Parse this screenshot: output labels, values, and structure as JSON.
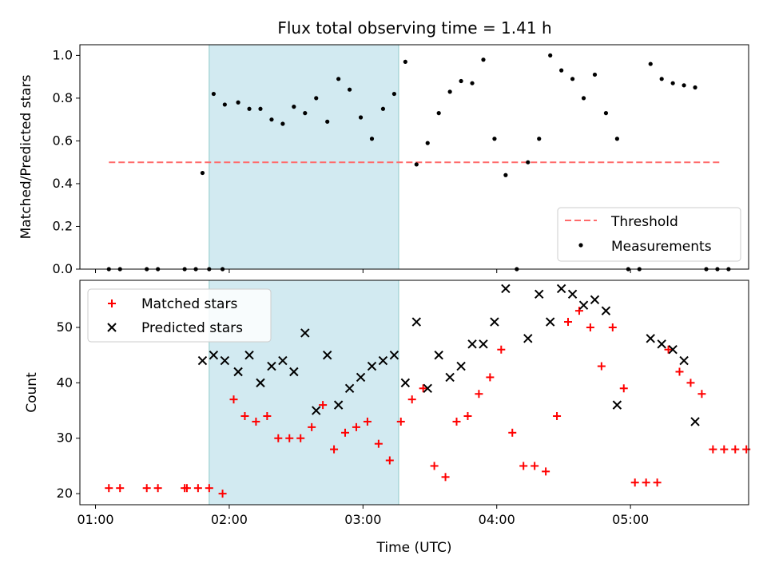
{
  "title": "Flux total observing time = 1.41 h",
  "colors": {
    "shade": "#add8e6",
    "threshold": "#ff6b6b",
    "measurement": "#000000",
    "matched": "#ff0000",
    "predicted": "#000000"
  },
  "chart_data": [
    {
      "type": "scatter",
      "ylabel": "Matched/Predicted stars",
      "xlim": [
        "00:53",
        "05:53"
      ],
      "ylim": [
        0,
        1.05
      ],
      "yticks": [
        "0.0",
        "0.2",
        "0.4",
        "0.6",
        "0.8",
        "1.0"
      ],
      "legend_position": "bottom-right",
      "shaded_span": [
        "01:51",
        "03:16"
      ],
      "threshold": {
        "name": "Threshold",
        "value": 0.5,
        "x_range": [
          "01:06",
          "05:41"
        ],
        "style": "dashed"
      },
      "series": [
        {
          "name": "Measurements",
          "points": [
            [
              "01:06",
              0.0
            ],
            [
              "01:11",
              0.0
            ],
            [
              "01:23",
              0.0
            ],
            [
              "01:28",
              0.0
            ],
            [
              "01:40",
              0.0
            ],
            [
              "01:45",
              0.0
            ],
            [
              "01:51",
              0.0
            ],
            [
              "01:57",
              0.0
            ],
            [
              "01:48",
              0.45
            ],
            [
              "01:53",
              0.82
            ],
            [
              "01:58",
              0.77
            ],
            [
              "02:04",
              0.78
            ],
            [
              "02:09",
              0.75
            ],
            [
              "02:14",
              0.75
            ],
            [
              "02:19",
              0.7
            ],
            [
              "02:24",
              0.68
            ],
            [
              "02:29",
              0.76
            ],
            [
              "02:34",
              0.73
            ],
            [
              "02:39",
              0.8
            ],
            [
              "02:44",
              0.69
            ],
            [
              "02:49",
              0.89
            ],
            [
              "02:54",
              0.84
            ],
            [
              "02:59",
              0.71
            ],
            [
              "03:04",
              0.61
            ],
            [
              "03:09",
              0.75
            ],
            [
              "03:14",
              0.82
            ],
            [
              "03:19",
              0.97
            ],
            [
              "03:24",
              0.49
            ],
            [
              "03:29",
              0.59
            ],
            [
              "03:34",
              0.73
            ],
            [
              "03:39",
              0.83
            ],
            [
              "03:44",
              0.88
            ],
            [
              "03:49",
              0.87
            ],
            [
              "03:54",
              0.98
            ],
            [
              "03:59",
              0.61
            ],
            [
              "04:04",
              0.44
            ],
            [
              "04:09",
              0.0
            ],
            [
              "04:14",
              0.5
            ],
            [
              "04:19",
              0.61
            ],
            [
              "04:24",
              1.0
            ],
            [
              "04:29",
              0.93
            ],
            [
              "04:34",
              0.89
            ],
            [
              "04:39",
              0.8
            ],
            [
              "04:44",
              0.91
            ],
            [
              "04:49",
              0.73
            ],
            [
              "04:54",
              0.61
            ],
            [
              "04:59",
              0.0
            ],
            [
              "05:04",
              0.0
            ],
            [
              "05:09",
              0.96
            ],
            [
              "05:14",
              0.89
            ],
            [
              "05:19",
              0.87
            ],
            [
              "05:24",
              0.86
            ],
            [
              "05:29",
              0.85
            ],
            [
              "05:34",
              0.0
            ],
            [
              "05:39",
              0.0
            ],
            [
              "05:44",
              0.0
            ]
          ]
        }
      ]
    },
    {
      "type": "scatter",
      "ylabel": "Count",
      "xlabel": "Time (UTC)",
      "xlim": [
        "00:53",
        "05:53"
      ],
      "ylim": [
        18,
        58.5
      ],
      "yticks": [
        "20",
        "30",
        "40",
        "50"
      ],
      "xticks": [
        "01:00",
        "02:00",
        "03:00",
        "04:00",
        "05:00"
      ],
      "legend_position": "top-left",
      "shaded_span": [
        "01:51",
        "03:16"
      ],
      "series": [
        {
          "name": "Matched stars",
          "marker": "plus",
          "points": [
            [
              "01:06",
              21
            ],
            [
              "01:11",
              21
            ],
            [
              "01:23",
              21
            ],
            [
              "01:28",
              21
            ],
            [
              "01:40",
              21
            ],
            [
              "01:41",
              21
            ],
            [
              "01:46",
              21
            ],
            [
              "01:51",
              21
            ],
            [
              "01:57",
              20
            ],
            [
              "02:02",
              37
            ],
            [
              "02:07",
              34
            ],
            [
              "02:12",
              33
            ],
            [
              "02:17",
              34
            ],
            [
              "02:22",
              30
            ],
            [
              "02:27",
              30
            ],
            [
              "02:32",
              30
            ],
            [
              "02:37",
              32
            ],
            [
              "02:42",
              36
            ],
            [
              "02:47",
              28
            ],
            [
              "02:52",
              31
            ],
            [
              "02:57",
              32
            ],
            [
              "03:02",
              33
            ],
            [
              "03:07",
              29
            ],
            [
              "03:12",
              26
            ],
            [
              "03:17",
              33
            ],
            [
              "03:22",
              37
            ],
            [
              "03:27",
              39
            ],
            [
              "03:32",
              25
            ],
            [
              "03:37",
              23
            ],
            [
              "03:42",
              33
            ],
            [
              "03:47",
              34
            ],
            [
              "03:52",
              38
            ],
            [
              "03:57",
              41
            ],
            [
              "04:02",
              46
            ],
            [
              "04:07",
              31
            ],
            [
              "04:12",
              25
            ],
            [
              "04:17",
              25
            ],
            [
              "04:22",
              24
            ],
            [
              "04:27",
              34
            ],
            [
              "04:32",
              51
            ],
            [
              "04:37",
              53
            ],
            [
              "04:42",
              50
            ],
            [
              "04:47",
              43
            ],
            [
              "04:52",
              50
            ],
            [
              "04:57",
              39
            ],
            [
              "05:02",
              22
            ],
            [
              "05:07",
              22
            ],
            [
              "05:12",
              22
            ],
            [
              "05:17",
              46
            ],
            [
              "05:22",
              42
            ],
            [
              "05:27",
              40
            ],
            [
              "05:32",
              38
            ],
            [
              "05:37",
              28
            ],
            [
              "05:42",
              28
            ],
            [
              "05:47",
              28
            ],
            [
              "05:52",
              28
            ]
          ]
        },
        {
          "name": "Predicted stars",
          "marker": "x",
          "points": [
            [
              "01:48",
              44
            ],
            [
              "01:53",
              45
            ],
            [
              "01:58",
              44
            ],
            [
              "02:04",
              42
            ],
            [
              "02:09",
              45
            ],
            [
              "02:14",
              40
            ],
            [
              "02:19",
              43
            ],
            [
              "02:24",
              44
            ],
            [
              "02:29",
              42
            ],
            [
              "02:34",
              49
            ],
            [
              "02:39",
              35
            ],
            [
              "02:44",
              45
            ],
            [
              "02:49",
              36
            ],
            [
              "02:54",
              39
            ],
            [
              "02:59",
              41
            ],
            [
              "03:04",
              43
            ],
            [
              "03:09",
              44
            ],
            [
              "03:14",
              45
            ],
            [
              "03:19",
              40
            ],
            [
              "03:24",
              51
            ],
            [
              "03:29",
              39
            ],
            [
              "03:34",
              45
            ],
            [
              "03:39",
              41
            ],
            [
              "03:44",
              43
            ],
            [
              "03:49",
              47
            ],
            [
              "03:54",
              47
            ],
            [
              "03:59",
              51
            ],
            [
              "04:04",
              57
            ],
            [
              "04:14",
              48
            ],
            [
              "04:19",
              56
            ],
            [
              "04:24",
              51
            ],
            [
              "04:29",
              57
            ],
            [
              "04:34",
              56
            ],
            [
              "04:39",
              54
            ],
            [
              "04:44",
              55
            ],
            [
              "04:49",
              53
            ],
            [
              "04:54",
              36
            ],
            [
              "05:09",
              48
            ],
            [
              "05:14",
              47
            ],
            [
              "05:19",
              46
            ],
            [
              "05:24",
              44
            ],
            [
              "05:29",
              33
            ]
          ]
        }
      ]
    }
  ]
}
